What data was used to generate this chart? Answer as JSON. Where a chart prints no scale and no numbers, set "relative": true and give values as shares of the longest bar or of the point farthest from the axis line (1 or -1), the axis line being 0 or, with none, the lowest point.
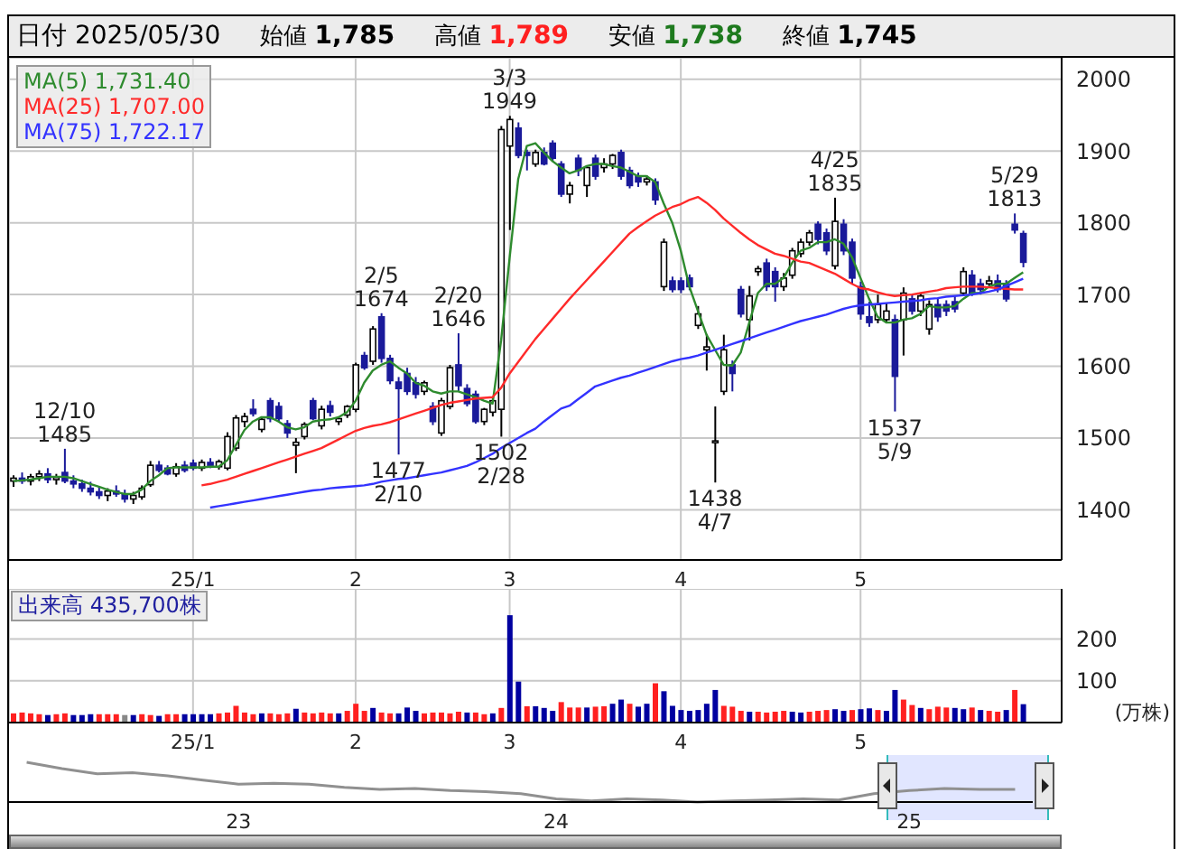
{
  "chart_data": [
    {
      "type": "candlestick",
      "title": "日付 2025/05/30",
      "annotations": [
        "始値 1,785",
        "高値 1,789",
        "安値 1,738",
        "終値 1,745",
        {
          "text": "12/10\n1485",
          "y": 1485
        },
        {
          "text": "2/5\n1674",
          "y": 1674
        },
        {
          "text": "2/20\n1646",
          "y": 1646
        },
        {
          "text": "3/3\n1949",
          "y": 1949
        },
        {
          "text": "4/25\n1835",
          "y": 1835
        },
        {
          "text": "5/29\n1813",
          "y": 1813
        },
        {
          "text": "1477\n2/10",
          "y": 1477
        },
        {
          "text": "1502\n2/28",
          "y": 1502
        },
        {
          "text": "1438\n4/7",
          "y": 1438
        },
        {
          "text": "1537\n5/9",
          "y": 1537
        }
      ],
      "categories": [
        null,
        null,
        null,
        null,
        null,
        null,
        null,
        null,
        null,
        null,
        null,
        null,
        null,
        null,
        null,
        null,
        null,
        null,
        null,
        null,
        null,
        "25/1",
        null,
        null,
        null,
        null,
        null,
        null,
        null,
        null,
        null,
        null,
        null,
        null,
        null,
        null,
        null,
        null,
        null,
        null,
        "2",
        null,
        null,
        null,
        null,
        null,
        null,
        null,
        null,
        null,
        null,
        null,
        null,
        null,
        null,
        null,
        null,
        null,
        "3",
        null,
        null,
        null,
        null,
        null,
        null,
        null,
        null,
        null,
        null,
        null,
        null,
        null,
        null,
        null,
        null,
        null,
        null,
        null,
        "4",
        null,
        null,
        null,
        null,
        null,
        null,
        null,
        null,
        null,
        null,
        null,
        null,
        null,
        null,
        null,
        null,
        null,
        null,
        null,
        null,
        "5",
        null,
        null,
        null,
        null,
        null,
        null,
        null,
        null,
        null,
        null,
        null,
        null,
        null,
        null,
        null,
        null,
        null,
        null,
        null
      ],
      "ohlc": [
        [
          1440,
          1448,
          1432,
          1444
        ],
        [
          1444,
          1452,
          1436,
          1440
        ],
        [
          1440,
          1450,
          1434,
          1446
        ],
        [
          1446,
          1455,
          1440,
          1450
        ],
        [
          1450,
          1458,
          1437,
          1442
        ],
        [
          1442,
          1450,
          1435,
          1445
        ],
        [
          1452,
          1485,
          1437,
          1440
        ],
        [
          1440,
          1448,
          1430,
          1436
        ],
        [
          1436,
          1442,
          1425,
          1430
        ],
        [
          1430,
          1439,
          1420,
          1425
        ],
        [
          1425,
          1432,
          1415,
          1420
        ],
        [
          1420,
          1430,
          1412,
          1426
        ],
        [
          1426,
          1434,
          1418,
          1422
        ],
        [
          1422,
          1428,
          1410,
          1415
        ],
        [
          1415,
          1425,
          1408,
          1420
        ],
        [
          1418,
          1434,
          1414,
          1430
        ],
        [
          1435,
          1468,
          1432,
          1462
        ],
        [
          1462,
          1468,
          1452,
          1455
        ],
        [
          1458,
          1462,
          1448,
          1450
        ],
        [
          1450,
          1465,
          1446,
          1460
        ],
        [
          1462,
          1468,
          1452,
          1455
        ],
        [
          1465,
          1470,
          1455,
          1458
        ],
        [
          1458,
          1470,
          1454,
          1466
        ],
        [
          1466,
          1472,
          1458,
          1462
        ],
        [
          1460,
          1470,
          1456,
          1467
        ],
        [
          1458,
          1508,
          1455,
          1502
        ],
        [
          1486,
          1532,
          1482,
          1528
        ],
        [
          1523,
          1535,
          1515,
          1530
        ],
        [
          1540,
          1554,
          1530,
          1534
        ],
        [
          1512,
          1528,
          1508,
          1526
        ],
        [
          1552,
          1556,
          1522,
          1527
        ],
        [
          1544,
          1550,
          1522,
          1527
        ],
        [
          1520,
          1525,
          1500,
          1507
        ],
        [
          1490,
          1500,
          1451,
          1494
        ],
        [
          1502,
          1522,
          1498,
          1519
        ],
        [
          1552,
          1556,
          1525,
          1527
        ],
        [
          1517,
          1545,
          1512,
          1540
        ],
        [
          1545,
          1552,
          1530,
          1536
        ],
        [
          1523,
          1530,
          1518,
          1527
        ],
        [
          1532,
          1546,
          1528,
          1544
        ],
        [
          1540,
          1605,
          1536,
          1602
        ],
        [
          1615,
          1620,
          1595,
          1598
        ],
        [
          1607,
          1656,
          1602,
          1652
        ],
        [
          1669,
          1674,
          1605,
          1611
        ],
        [
          1611,
          1616,
          1575,
          1580
        ],
        [
          1578,
          1585,
          1477,
          1569
        ],
        [
          1590,
          1598,
          1560,
          1565
        ],
        [
          1577,
          1585,
          1555,
          1561
        ],
        [
          1565,
          1580,
          1560,
          1577
        ],
        [
          1544,
          1550,
          1518,
          1523
        ],
        [
          1507,
          1556,
          1503,
          1552
        ],
        [
          1544,
          1602,
          1540,
          1598
        ],
        [
          1602,
          1646,
          1565,
          1573
        ],
        [
          1569,
          1575,
          1544,
          1548
        ],
        [
          1561,
          1566,
          1520,
          1523
        ],
        [
          1523,
          1542,
          1518,
          1540
        ],
        [
          1536,
          1556,
          1530,
          1552
        ],
        [
          1540,
          1935,
          1502,
          1930
        ],
        [
          1907,
          1949,
          1790,
          1944
        ],
        [
          1932,
          1940,
          1890,
          1894
        ],
        [
          1898,
          1902,
          1873,
          1894
        ],
        [
          1882,
          1902,
          1878,
          1898
        ],
        [
          1898,
          1905,
          1880,
          1882
        ],
        [
          1911,
          1915,
          1885,
          1890
        ],
        [
          1882,
          1886,
          1836,
          1840
        ],
        [
          1840,
          1857,
          1827,
          1852
        ],
        [
          1890,
          1895,
          1865,
          1873
        ],
        [
          1852,
          1880,
          1836,
          1877
        ],
        [
          1890,
          1895,
          1860,
          1865
        ],
        [
          1877,
          1890,
          1870,
          1882
        ],
        [
          1882,
          1896,
          1875,
          1894
        ],
        [
          1898,
          1902,
          1860,
          1865
        ],
        [
          1873,
          1878,
          1848,
          1852
        ],
        [
          1865,
          1870,
          1850,
          1857
        ],
        [
          1857,
          1866,
          1852,
          1861
        ],
        [
          1857,
          1862,
          1825,
          1832
        ],
        [
          1711,
          1778,
          1705,
          1773
        ],
        [
          1719,
          1725,
          1703,
          1707
        ],
        [
          1719,
          1724,
          1702,
          1707
        ],
        [
          1723,
          1728,
          1706,
          1711
        ],
        [
          1657,
          1684,
          1652,
          1673
        ],
        [
          1623,
          1645,
          1594,
          1627
        ],
        [
          1494,
          1544,
          1438,
          1496
        ],
        [
          1565,
          1644,
          1560,
          1623
        ],
        [
          1602,
          1608,
          1565,
          1590
        ],
        [
          1707,
          1712,
          1668,
          1673
        ],
        [
          1665,
          1712,
          1636,
          1698
        ],
        [
          1732,
          1740,
          1726,
          1736
        ],
        [
          1744,
          1750,
          1705,
          1711
        ],
        [
          1732,
          1738,
          1690,
          1711
        ],
        [
          1711,
          1730,
          1705,
          1723
        ],
        [
          1727,
          1765,
          1722,
          1761
        ],
        [
          1757,
          1778,
          1752,
          1773
        ],
        [
          1773,
          1790,
          1768,
          1786
        ],
        [
          1798,
          1802,
          1770,
          1777
        ],
        [
          1786,
          1792,
          1755,
          1761
        ],
        [
          1740,
          1835,
          1735,
          1802
        ],
        [
          1798,
          1805,
          1755,
          1761
        ],
        [
          1773,
          1778,
          1715,
          1723
        ],
        [
          1711,
          1718,
          1665,
          1673
        ],
        [
          1669,
          1690,
          1655,
          1661
        ],
        [
          1665,
          1700,
          1660,
          1686
        ],
        [
          1665,
          1688,
          1660,
          1677
        ],
        [
          1665,
          1672,
          1537,
          1586
        ],
        [
          1665,
          1710,
          1615,
          1702
        ],
        [
          1694,
          1700,
          1672,
          1677
        ],
        [
          1677,
          1702,
          1670,
          1698
        ],
        [
          1652,
          1692,
          1644,
          1686
        ],
        [
          1686,
          1694,
          1662,
          1669
        ],
        [
          1686,
          1692,
          1670,
          1677
        ],
        [
          1690,
          1698,
          1675,
          1680
        ],
        [
          1702,
          1738,
          1698,
          1732
        ],
        [
          1727,
          1734,
          1698,
          1702
        ],
        [
          1715,
          1722,
          1700,
          1707
        ],
        [
          1715,
          1726,
          1712,
          1719
        ],
        [
          1719,
          1728,
          1703,
          1707
        ],
        [
          1715,
          1720,
          1690,
          1694
        ],
        [
          1798,
          1813,
          1785,
          1790
        ],
        [
          1785,
          1789,
          1738,
          1745
        ]
      ],
      "series": [
        {
          "type": "line",
          "name": "MA(5) 1,731.40",
          "color": "#2e8b2e",
          "values": [
            1440,
            1441,
            1442,
            1444,
            1446,
            1446,
            1446,
            1444,
            1440,
            1436,
            1432,
            1428,
            1425,
            1422,
            1422,
            1428,
            1440,
            1448,
            1458,
            1459,
            1459,
            1459,
            1459,
            1460,
            1460,
            1469,
            1490,
            1511,
            1523,
            1529,
            1529,
            1523,
            1515,
            1512,
            1515,
            1523,
            1525,
            1526,
            1529,
            1536,
            1552,
            1577,
            1594,
            1602,
            1607,
            1598,
            1590,
            1577,
            1573,
            1565,
            1562,
            1565,
            1565,
            1561,
            1557,
            1552,
            1548,
            1636,
            1752,
            1861,
            1907,
            1911,
            1898,
            1886,
            1877,
            1869,
            1873,
            1879,
            1882,
            1882,
            1879,
            1877,
            1871,
            1865,
            1865,
            1857,
            1827,
            1800,
            1761,
            1711,
            1677,
            1644,
            1623,
            1602,
            1601,
            1619,
            1661,
            1702,
            1715,
            1715,
            1723,
            1744,
            1761,
            1765,
            1773,
            1773,
            1777,
            1771,
            1752,
            1723,
            1694,
            1669,
            1661,
            1661,
            1665,
            1667,
            1673,
            1684,
            1682,
            1682,
            1684,
            1694,
            1702,
            1702,
            1711,
            1715,
            1715,
            1723,
            1731
          ]
        },
        {
          "type": "line",
          "name": "MA(25) 1,707.00",
          "color": "#ff2a2a",
          "values": [
            null,
            null,
            null,
            null,
            null,
            null,
            null,
            null,
            null,
            null,
            null,
            null,
            null,
            null,
            null,
            null,
            null,
            null,
            null,
            null,
            null,
            null,
            1434,
            1436,
            1439,
            1442,
            1446,
            1450,
            1454,
            1458,
            1462,
            1466,
            1470,
            1474,
            1478,
            1482,
            1486,
            1492,
            1498,
            1504,
            1510,
            1514,
            1517,
            1519,
            1522,
            1526,
            1530,
            1534,
            1538,
            1542,
            1546,
            1549,
            1551,
            1553,
            1555,
            1556,
            1557,
            1570,
            1590,
            1606,
            1622,
            1638,
            1652,
            1666,
            1680,
            1694,
            1707,
            1720,
            1733,
            1746,
            1759,
            1772,
            1785,
            1794,
            1802,
            1810,
            1816,
            1822,
            1826,
            1832,
            1836,
            1828,
            1818,
            1806,
            1796,
            1786,
            1777,
            1769,
            1763,
            1757,
            1754,
            1750,
            1746,
            1744,
            1739,
            1734,
            1729,
            1722,
            1715,
            1709,
            1707,
            1703,
            1700,
            1698,
            1699,
            1700,
            1702,
            1704,
            1706,
            1709,
            1710,
            1711,
            1711,
            1711,
            1710,
            1709,
            1708,
            1707,
            1707
          ]
        },
        {
          "type": "line",
          "name": "MA(75) 1,722.17",
          "color": "#3333ff",
          "values": [
            null,
            null,
            null,
            null,
            null,
            null,
            null,
            null,
            null,
            null,
            null,
            null,
            null,
            null,
            null,
            null,
            null,
            null,
            null,
            null,
            null,
            null,
            null,
            1403,
            1405,
            1407,
            1409,
            1411,
            1413,
            1415,
            1417,
            1419,
            1421,
            1423,
            1425,
            1427,
            1428,
            1430,
            1431,
            1432,
            1433,
            1434,
            1436,
            1439,
            1441,
            1443,
            1444,
            1446,
            1448,
            1450,
            1452,
            1455,
            1458,
            1461,
            1466,
            1472,
            1478,
            1486,
            1493,
            1500,
            1507,
            1513,
            1523,
            1532,
            1541,
            1545,
            1554,
            1563,
            1572,
            1576,
            1580,
            1584,
            1587,
            1591,
            1595,
            1599,
            1603,
            1607,
            1610,
            1612,
            1615,
            1619,
            1623,
            1627,
            1631,
            1635,
            1639,
            1643,
            1647,
            1651,
            1655,
            1659,
            1663,
            1666,
            1669,
            1672,
            1676,
            1680,
            1683,
            1685,
            1686,
            1687,
            1688,
            1689,
            1690,
            1691,
            1692,
            1694,
            1695,
            1697,
            1698,
            1699,
            1700,
            1702,
            1704,
            1707,
            1712,
            1717,
            1722
          ]
        }
      ],
      "ylim": [
        1330,
        2030
      ],
      "yticks": [
        1400,
        1500,
        1600,
        1700,
        1800,
        1900,
        2000
      ],
      "grid": true,
      "legend": "top left"
    },
    {
      "type": "bar",
      "title": "出来高 435,700株",
      "ylabel": "(万株)",
      "categories": [
        null,
        null,
        null,
        null,
        null,
        null,
        null,
        null,
        null,
        null,
        null,
        null,
        null,
        null,
        null,
        null,
        null,
        null,
        null,
        null,
        null,
        "25/1",
        null,
        null,
        null,
        null,
        null,
        null,
        null,
        null,
        null,
        null,
        null,
        null,
        null,
        null,
        null,
        null,
        null,
        null,
        "2",
        null,
        null,
        null,
        null,
        null,
        null,
        null,
        null,
        null,
        null,
        null,
        null,
        null,
        null,
        null,
        null,
        null,
        "3",
        null,
        null,
        null,
        null,
        null,
        null,
        null,
        null,
        null,
        null,
        null,
        null,
        null,
        null,
        null,
        null,
        null,
        null,
        null,
        "4",
        null,
        null,
        null,
        null,
        null,
        null,
        null,
        null,
        null,
        null,
        null,
        null,
        null,
        null,
        null,
        null,
        null,
        null,
        null,
        null,
        "5",
        null,
        null,
        null,
        null,
        null,
        null,
        null,
        null,
        null,
        null,
        null,
        null,
        null,
        null,
        null,
        null,
        null,
        null,
        null
      ],
      "values": [
        22,
        24,
        22,
        20,
        18,
        20,
        22,
        18,
        18,
        20,
        20,
        20,
        20,
        18,
        18,
        20,
        18,
        16,
        20,
        20,
        20,
        20,
        20,
        20,
        22,
        24,
        40,
        24,
        20,
        22,
        22,
        20,
        22,
        33,
        24,
        22,
        24,
        22,
        22,
        28,
        45,
        28,
        35,
        24,
        22,
        22,
        36,
        28,
        22,
        24,
        24,
        22,
        26,
        24,
        24,
        20,
        22,
        35,
        257,
        98,
        39,
        39,
        35,
        28,
        49,
        36,
        36,
        36,
        38,
        39,
        45,
        55,
        45,
        38,
        45,
        94,
        75,
        40,
        30,
        28,
        30,
        45,
        78,
        40,
        38,
        28,
        26,
        26,
        24,
        26,
        28,
        26,
        24,
        26,
        28,
        30,
        32,
        28,
        30,
        32,
        34,
        30,
        28,
        78,
        55,
        42,
        35,
        32,
        38,
        36,
        35,
        32,
        36,
        30,
        28,
        26,
        30,
        78,
        44
      ],
      "colors": [
        "#ff2020",
        "#ff2020",
        "#ff2020",
        "#ff2020",
        "#0000a0",
        "#ff2020",
        "#ff2020",
        "#0000a0",
        "#0000a0",
        "#0000a0",
        "#ff2020",
        "#ff2020",
        "#ff2020",
        "#888888",
        "#0000a0",
        "#ff2020",
        "#ff2020",
        "#0000a0",
        "#ff2020",
        "#ff2020",
        "#0000a0",
        "#0000a0",
        "#0000a0",
        "#0000a0",
        "#ff2020",
        "#ff2020",
        "#ff2020",
        "#ff2020",
        "#ff2020",
        "#0000a0",
        "#ff2020",
        "#ff2020",
        "#ff2020",
        "#0000a0",
        "#ff2020",
        "#ff2020",
        "#ff2020",
        "#ff2020",
        "#0000a0",
        "#ff2020",
        "#ff2020",
        "#ff2020",
        "#0000a0",
        "#ff2020",
        "#ff2020",
        "#0000a0",
        "#0000a0",
        "#0000a0",
        "#ff2020",
        "#ff2020",
        "#ff2020",
        "#ff2020",
        "#ff2020",
        "#0000a0",
        "#ff2020",
        "#ff2020",
        "#0000a0",
        "#ff2020",
        "#0000a0",
        "#0000a0",
        "#ff2020",
        "#0000a0",
        "#0000a0",
        "#0000a0",
        "#ff2020",
        "#ff2020",
        "#ff2020",
        "#0000a0",
        "#ff2020",
        "#ff2020",
        "#0000a0",
        "#0000a0",
        "#ff2020",
        "#0000a0",
        "#0000a0",
        "#ff2020",
        "#0000a0",
        "#0000a0",
        "#0000a0",
        "#0000a0",
        "#0000a0",
        "#0000a0",
        "#0000a0",
        "#ff2020",
        "#ff2020",
        "#ff2020",
        "#0000a0",
        "#ff2020",
        "#ff2020",
        "#ff2020",
        "#ff2020",
        "#0000a0",
        "#0000a0",
        "#ff2020",
        "#ff2020",
        "#ff2020",
        "#0000a0",
        "#0000a0",
        "#ff2020",
        "#0000a0",
        "#0000a0",
        "#ff2020",
        "#0000a0",
        "#0000a0",
        "#ff2020",
        "#ff2020",
        "#0000a0",
        "#ff2020",
        "#ff2020",
        "#ff2020",
        "#0000a0",
        "#0000a0",
        "#ff2020",
        "#0000a0",
        "#ff2020",
        "#ff2020",
        "#0000a0",
        "#ff2020",
        "#0000a0"
      ],
      "ylim": [
        0,
        320
      ],
      "yticks": [
        100,
        200
      ],
      "grid": true
    },
    {
      "type": "line",
      "relative": true,
      "color": "#909090",
      "categories": [
        null,
        null,
        null,
        null,
        null,
        null,
        "23",
        null,
        null,
        null,
        null,
        null,
        null,
        null,
        null,
        "24",
        null,
        null,
        null,
        null,
        null,
        null,
        null,
        null,
        null,
        "25",
        null,
        null,
        null
      ],
      "values": [
        1,
        0.84,
        0.71,
        0.74,
        0.66,
        0.55,
        0.45,
        0.47,
        0.45,
        0.37,
        0.32,
        0.34,
        0.29,
        0.26,
        0.21,
        0.08,
        0.03,
        0.08,
        0.05,
        0,
        0.03,
        0.05,
        0.08,
        0.05,
        0.21,
        0.29,
        0.34,
        0.32,
        0.32
      ]
    }
  ]
}
